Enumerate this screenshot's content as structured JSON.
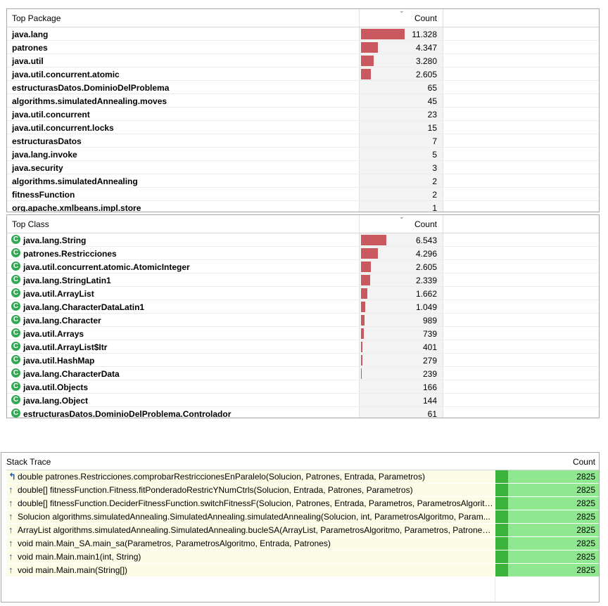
{
  "top_package": {
    "header": {
      "name": "Top Package",
      "count": "Count"
    },
    "rows": [
      {
        "name": "java.lang",
        "count": "11.328",
        "value": 11328
      },
      {
        "name": "patrones",
        "count": "4.347",
        "value": 4347
      },
      {
        "name": "java.util",
        "count": "3.280",
        "value": 3280
      },
      {
        "name": "java.util.concurrent.atomic",
        "count": "2.605",
        "value": 2605
      },
      {
        "name": "estructurasDatos.DominioDelProblema",
        "count": "65",
        "value": 65
      },
      {
        "name": "algorithms.simulatedAnnealing.moves",
        "count": "45",
        "value": 45
      },
      {
        "name": "java.util.concurrent",
        "count": "23",
        "value": 23
      },
      {
        "name": "java.util.concurrent.locks",
        "count": "15",
        "value": 15
      },
      {
        "name": "estructurasDatos",
        "count": "7",
        "value": 7
      },
      {
        "name": "java.lang.invoke",
        "count": "5",
        "value": 5
      },
      {
        "name": "java.security",
        "count": "3",
        "value": 3
      },
      {
        "name": "algorithms.simulatedAnnealing",
        "count": "2",
        "value": 2
      },
      {
        "name": "fitnessFunction",
        "count": "2",
        "value": 2
      },
      {
        "name": "org.apache.xmlbeans.impl.store",
        "count": "1",
        "value": 1
      }
    ]
  },
  "top_class": {
    "header": {
      "name": "Top Class",
      "count": "Count"
    },
    "class_icon": "class-c-icon",
    "rows": [
      {
        "name": "java.lang.String",
        "count": "6.543",
        "value": 6543
      },
      {
        "name": "patrones.Restricciones",
        "count": "4.296",
        "value": 4296
      },
      {
        "name": "java.util.concurrent.atomic.AtomicInteger",
        "count": "2.605",
        "value": 2605
      },
      {
        "name": "java.lang.StringLatin1",
        "count": "2.339",
        "value": 2339
      },
      {
        "name": "java.util.ArrayList",
        "count": "1.662",
        "value": 1662
      },
      {
        "name": "java.lang.CharacterDataLatin1",
        "count": "1.049",
        "value": 1049
      },
      {
        "name": "java.lang.Character",
        "count": "989",
        "value": 989
      },
      {
        "name": "java.util.Arrays",
        "count": "739",
        "value": 739
      },
      {
        "name": "java.util.ArrayList$Itr",
        "count": "401",
        "value": 401
      },
      {
        "name": "java.util.HashMap",
        "count": "279",
        "value": 279
      },
      {
        "name": "java.lang.CharacterData",
        "count": "239",
        "value": 239
      },
      {
        "name": "java.util.Objects",
        "count": "166",
        "value": 166
      },
      {
        "name": "java.lang.Object",
        "count": "144",
        "value": 144
      },
      {
        "name": "estructurasDatos.DominioDelProblema.Controlador",
        "count": "61",
        "value": 61
      }
    ]
  },
  "stack_trace": {
    "header": {
      "name": "Stack Trace",
      "count": "Count"
    },
    "rows": [
      {
        "frame": "double patrones.Restricciones.comprobarRestriccionesEnParalelo(Solucion, Patrones, Entrada, Parametros)",
        "count": "2825"
      },
      {
        "frame": "double[] fitnessFunction.Fitness.fitPonderadoRestricYNumCtrls(Solucion, Entrada, Patrones, Parametros)",
        "count": "2825"
      },
      {
        "frame": "double[] fitnessFunction.DeciderFitnessFunction.switchFitnessF(Solucion, Patrones, Entrada, Parametros, ParametrosAlgoritmo)",
        "count": "2825"
      },
      {
        "frame": "Solucion algorithms.simulatedAnnealing.SimulatedAnnealing.simulatedAnnealing(Solucion, int, ParametrosAlgoritmo, Param...",
        "count": "2825"
      },
      {
        "frame": "ArrayList algorithms.simulatedAnnealing.SimulatedAnnealing.bucleSA(ArrayList, ParametrosAlgoritmo, Parametros, Patrones, ...",
        "count": "2825"
      },
      {
        "frame": "void main.Main_SA.main_sa(Parametros, ParametrosAlgoritmo, Entrada, Patrones)",
        "count": "2825"
      },
      {
        "frame": "void main.Main.main1(int, String)",
        "count": "2825"
      },
      {
        "frame": "void main.Main.main(String[])",
        "count": "2825"
      }
    ]
  }
}
